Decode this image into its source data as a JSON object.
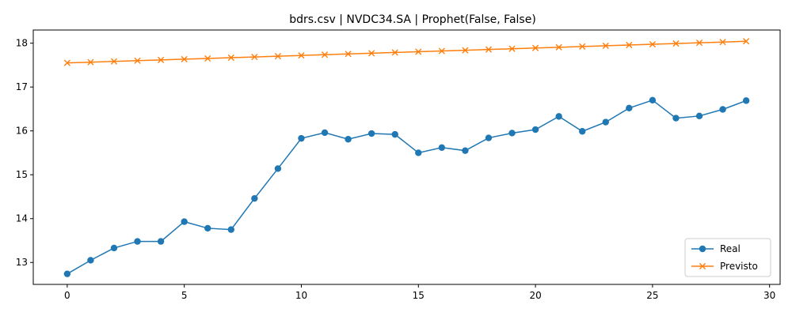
{
  "chart_data": {
    "type": "line",
    "title": "bdrs.csv | NVDC34.SA | Prophet(False, False)",
    "xlabel": "",
    "ylabel": "",
    "x": [
      0,
      1,
      2,
      3,
      4,
      5,
      6,
      7,
      8,
      9,
      10,
      11,
      12,
      13,
      14,
      15,
      16,
      17,
      18,
      19,
      20,
      21,
      22,
      23,
      24,
      25,
      26,
      27,
      28,
      29
    ],
    "xlim": [
      -1.45,
      30.45
    ],
    "ylim": [
      12.5,
      18.3
    ],
    "xticks": [
      0,
      5,
      10,
      15,
      20,
      25,
      30
    ],
    "yticks": [
      13,
      14,
      15,
      16,
      17,
      18
    ],
    "grid": false,
    "legend_position": "lower right",
    "series": [
      {
        "name": "Real",
        "color": "#1f77b4",
        "marker": "circle",
        "values": [
          12.74,
          13.05,
          13.33,
          13.48,
          13.48,
          13.93,
          13.78,
          13.75,
          14.46,
          15.14,
          15.83,
          15.96,
          15.81,
          15.94,
          15.92,
          15.5,
          15.62,
          15.55,
          15.84,
          15.95,
          16.03,
          16.33,
          15.99,
          16.2,
          16.52,
          16.7,
          16.29,
          16.34,
          16.49,
          16.69
        ]
      },
      {
        "name": "Previsto",
        "color": "#ff7f0e",
        "marker": "x",
        "values": [
          17.55,
          17.567,
          17.584,
          17.601,
          17.618,
          17.635,
          17.652,
          17.669,
          17.686,
          17.703,
          17.72,
          17.737,
          17.754,
          17.771,
          17.788,
          17.805,
          17.822,
          17.839,
          17.856,
          17.873,
          17.89,
          17.907,
          17.924,
          17.941,
          17.958,
          17.975,
          17.992,
          18.009,
          18.026,
          18.043
        ]
      }
    ]
  }
}
